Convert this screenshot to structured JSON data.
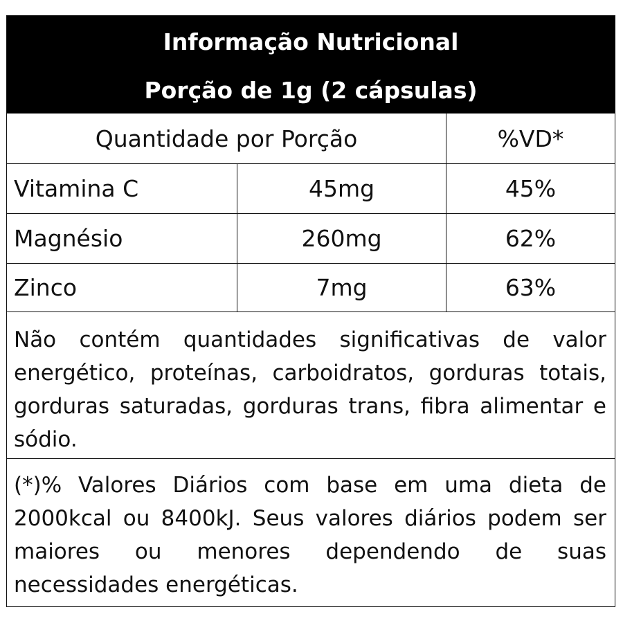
{
  "header": {
    "title": "Informação Nutricional",
    "portion": "Porção de 1g (2 cápsulas)"
  },
  "columns": {
    "quantity_header": "Quantidade por Porção",
    "dv_header": "%VD*"
  },
  "nutrients": [
    {
      "name": "Vitamina C",
      "amount": "45mg",
      "dv": "45%"
    },
    {
      "name": "Magnésio",
      "amount": "260mg",
      "dv": "62%"
    },
    {
      "name": "Zinco",
      "amount": "7mg",
      "dv": "63%"
    }
  ],
  "notes": {
    "insignificant": "Não contém quantidades significativas de valor energético, proteínas, carboidratos, gorduras totais, gorduras saturadas, gorduras trans, fibra alimentar e sódio.",
    "footnote": "(*)% Valores Diários com base em uma dieta de 2000kcal ou 8400kJ. Seus valores diários podem ser maiores ou menores dependendo de suas necessidades energéticas."
  }
}
